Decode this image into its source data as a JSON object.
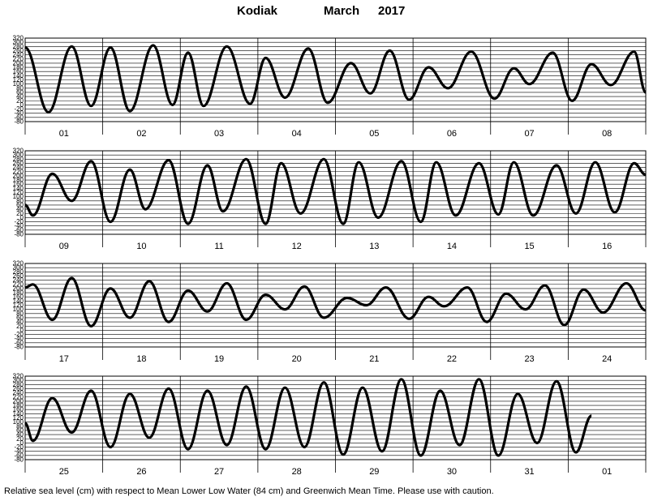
{
  "header": {
    "station": "Kodiak",
    "month": "March",
    "year": "2017"
  },
  "footnote": "Relative sea level (cm) with respect to Mean Lower Low Water (84 cm) and Greenwich Mean Time. Please use with caution.",
  "colors": {
    "line": "#000000",
    "grid": "#000000",
    "background": "#ffffff"
  },
  "chart_data": {
    "type": "line",
    "title": "Kodiak   March   2017",
    "ylabel": "",
    "xlabel": "",
    "ylim": [
      -80,
      320
    ],
    "y_ticks": [
      -80,
      -60,
      -40,
      -20,
      0,
      20,
      40,
      60,
      80,
      100,
      120,
      140,
      160,
      180,
      200,
      220,
      240,
      260,
      280,
      300,
      320
    ],
    "y_tick_labels": [
      "-80",
      "-60",
      "-40",
      "-20",
      "0",
      "20",
      "40",
      "60",
      "80",
      "100",
      "120",
      "140",
      "160",
      "180",
      "200",
      "220",
      "240",
      "260",
      "280",
      "300",
      "320"
    ],
    "grid": true,
    "days_per_panel": 8,
    "panels": [
      {
        "day_labels": [
          "01",
          "02",
          "03",
          "04",
          "05",
          "06",
          "07",
          "08"
        ]
      },
      {
        "day_labels": [
          "09",
          "10",
          "11",
          "12",
          "13",
          "14",
          "15",
          "16"
        ]
      },
      {
        "day_labels": [
          "17",
          "18",
          "19",
          "20",
          "21",
          "22",
          "23",
          "24"
        ]
      },
      {
        "day_labels": [
          "25",
          "26",
          "27",
          "28",
          "29",
          "30",
          "31",
          "01"
        ]
      }
    ],
    "series": [
      {
        "values": [
          [
            0,
            275
          ],
          [
            0.3,
            -35
          ],
          [
            0.6,
            280
          ],
          [
            0.85,
            -5
          ],
          [
            1.1,
            275
          ],
          [
            1.35,
            -30
          ],
          [
            1.65,
            285
          ],
          [
            1.9,
            0
          ],
          [
            2.1,
            250
          ],
          [
            2.3,
            -5
          ],
          [
            2.6,
            280
          ],
          [
            2.9,
            5
          ],
          [
            3.1,
            225
          ],
          [
            3.35,
            35
          ],
          [
            3.65,
            270
          ],
          [
            3.9,
            10
          ],
          [
            4.2,
            200
          ],
          [
            4.45,
            55
          ],
          [
            4.7,
            260
          ],
          [
            4.95,
            25
          ],
          [
            5.2,
            180
          ],
          [
            5.45,
            80
          ],
          [
            5.75,
            255
          ],
          [
            6.05,
            30
          ],
          [
            6.3,
            175
          ],
          [
            6.5,
            100
          ],
          [
            6.8,
            250
          ],
          [
            7.05,
            20
          ],
          [
            7.3,
            195
          ],
          [
            7.55,
            95
          ],
          [
            7.85,
            255
          ],
          [
            8,
            60
          ],
          [
            8,
            60
          ],
          [
            8.1,
            10
          ],
          [
            8.35,
            210
          ],
          [
            8.6,
            80
          ],
          [
            8.85,
            270
          ],
          [
            9.1,
            -20
          ],
          [
            9.35,
            230
          ],
          [
            9.55,
            40
          ],
          [
            9.85,
            275
          ],
          [
            10.1,
            -30
          ],
          [
            10.35,
            250
          ],
          [
            10.55,
            30
          ],
          [
            10.85,
            280
          ],
          [
            11.1,
            -30
          ],
          [
            11.3,
            260
          ],
          [
            11.55,
            20
          ],
          [
            11.85,
            280
          ],
          [
            12.1,
            -30
          ],
          [
            12.3,
            265
          ],
          [
            12.55,
            0
          ],
          [
            12.85,
            270
          ],
          [
            13.1,
            -20
          ],
          [
            13.3,
            265
          ],
          [
            13.55,
            10
          ],
          [
            13.85,
            260
          ],
          [
            14.1,
            15
          ],
          [
            14.3,
            265
          ],
          [
            14.55,
            10
          ],
          [
            14.85,
            250
          ],
          [
            15.1,
            20
          ],
          [
            15.35,
            265
          ],
          [
            15.6,
            25
          ],
          [
            15.85,
            260
          ],
          [
            16,
            205
          ],
          [
            16,
            205
          ],
          [
            16.1,
            220
          ],
          [
            16.35,
            50
          ],
          [
            16.6,
            250
          ],
          [
            16.85,
            20
          ],
          [
            17.1,
            200
          ],
          [
            17.35,
            60
          ],
          [
            17.6,
            235
          ],
          [
            17.85,
            40
          ],
          [
            18.1,
            190
          ],
          [
            18.35,
            90
          ],
          [
            18.6,
            225
          ],
          [
            18.85,
            50
          ],
          [
            19.1,
            170
          ],
          [
            19.35,
            100
          ],
          [
            19.6,
            210
          ],
          [
            19.85,
            60
          ],
          [
            20.15,
            155
          ],
          [
            20.4,
            120
          ],
          [
            20.65,
            205
          ],
          [
            20.95,
            55
          ],
          [
            21.2,
            160
          ],
          [
            21.4,
            115
          ],
          [
            21.7,
            205
          ],
          [
            21.95,
            40
          ],
          [
            22.2,
            175
          ],
          [
            22.45,
            100
          ],
          [
            22.7,
            215
          ],
          [
            22.95,
            25
          ],
          [
            23.2,
            195
          ],
          [
            23.45,
            85
          ],
          [
            23.75,
            225
          ],
          [
            24,
            95
          ],
          [
            24,
            95
          ],
          [
            24.1,
            10
          ],
          [
            24.35,
            215
          ],
          [
            24.6,
            50
          ],
          [
            24.85,
            250
          ],
          [
            25.1,
            -20
          ],
          [
            25.35,
            235
          ],
          [
            25.6,
            25
          ],
          [
            25.85,
            260
          ],
          [
            26.1,
            -30
          ],
          [
            26.35,
            250
          ],
          [
            26.6,
            -10
          ],
          [
            26.85,
            270
          ],
          [
            27.1,
            -30
          ],
          [
            27.35,
            265
          ],
          [
            27.6,
            -20
          ],
          [
            27.85,
            290
          ],
          [
            28.1,
            -55
          ],
          [
            28.35,
            265
          ],
          [
            28.6,
            -40
          ],
          [
            28.85,
            305
          ],
          [
            29.1,
            -60
          ],
          [
            29.35,
            250
          ],
          [
            29.6,
            -10
          ],
          [
            29.85,
            305
          ],
          [
            30.1,
            -60
          ],
          [
            30.35,
            235
          ],
          [
            30.6,
            0
          ],
          [
            30.85,
            295
          ],
          [
            31.1,
            -45
          ],
          [
            31.3,
            130
          ]
        ]
      }
    ]
  }
}
